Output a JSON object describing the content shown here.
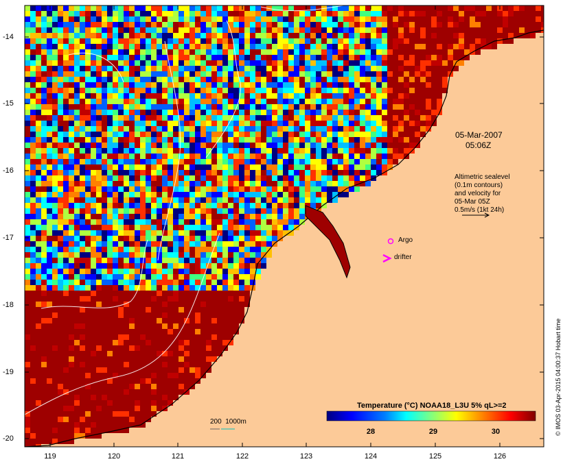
{
  "map": {
    "lon_ticks": [
      "119",
      "120",
      "121",
      "122",
      "123",
      "124",
      "125",
      "126"
    ],
    "lat_ticks": [
      "-14",
      "-15",
      "-16",
      "-17",
      "-18",
      "-19",
      "-20"
    ],
    "date_label": "05-Mar-2007",
    "time_label": "05:06Z",
    "altimetry_note": [
      "Altimetric sealevel",
      "(0.1m contours)",
      "and velocity for",
      "05-Mar 05Z",
      "0.5m/s (1kt 24h)"
    ],
    "argo_label": "Argo",
    "drifter_label": "drifter",
    "depth_label": "200  1000m",
    "colorbar_title": "Temperature (°C) NOAA18_L3U 5% qL>=2",
    "colorbar_ticks": [
      "28",
      "29",
      "30"
    ],
    "credit": "© IMOS 03-Apr-2015 04:00:37 Hobart time",
    "colors": {
      "land": "#fcca98",
      "hot": "#9e0000",
      "marker": "#ff00ff",
      "contour": "#ffffff"
    }
  }
}
